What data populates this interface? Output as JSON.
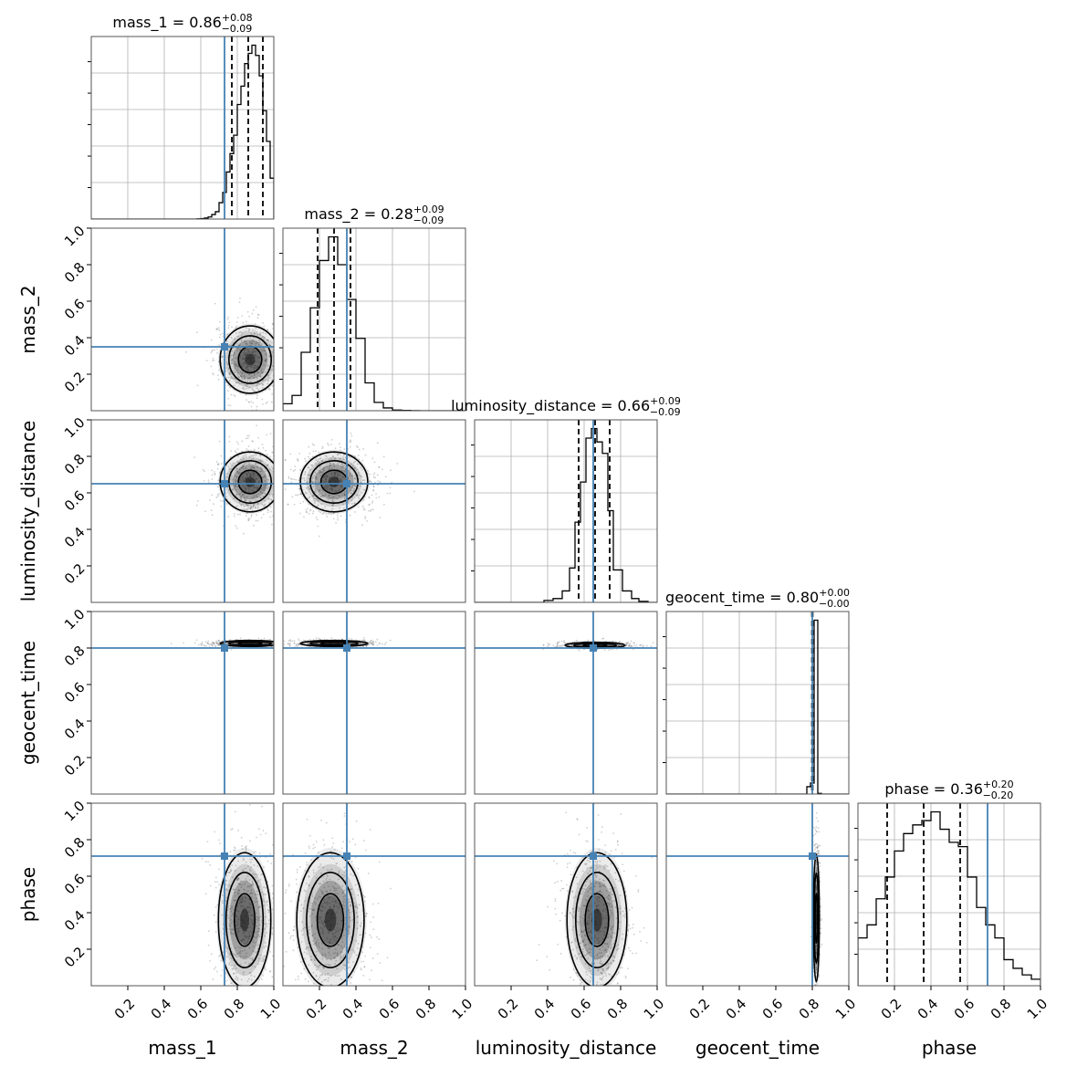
{
  "chart_data": {
    "type": "corner",
    "parameters": [
      "mass_1",
      "mass_2",
      "luminosity_distance",
      "geocent_time",
      "phase"
    ],
    "range": [
      0,
      1
    ],
    "tick_labels": [
      "0.2",
      "0.4",
      "0.6",
      "0.8",
      "1.0"
    ],
    "grid": true,
    "colors": {
      "truth": "#4682b4",
      "hist": "#000000",
      "grid": "#b0b0b0",
      "density": "#000000"
    },
    "truths": {
      "mass_1": 0.73,
      "mass_2": 0.35,
      "luminosity_distance": 0.65,
      "geocent_time": 0.8,
      "phase": 0.71
    },
    "titles": [
      {
        "name": "mass_1",
        "median": "0.86",
        "plus": "+0.08",
        "minus": "−0.09",
        "text": "mass_1 = 0.86",
        "sup": "+0.08",
        "sub": "−0.09"
      },
      {
        "name": "mass_2",
        "median": "0.28",
        "plus": "+0.09",
        "minus": "−0.09",
        "text": "mass_2 = 0.28",
        "sup": "+0.09",
        "sub": "−0.09"
      },
      {
        "name": "luminosity_distance",
        "median": "0.66",
        "plus": "+0.09",
        "minus": "−0.09",
        "text": "luminosity_distance = 0.66",
        "sup": "+0.09",
        "sub": "−0.09"
      },
      {
        "name": "geocent_time",
        "median": "0.80",
        "plus": "+0.00",
        "minus": "−0.00",
        "text": "geocent_time = 0.80",
        "sup": "+0.00",
        "sub": "−0.00"
      },
      {
        "name": "phase",
        "median": "0.36",
        "plus": "+0.20",
        "minus": "−0.20",
        "text": "phase = 0.36",
        "sup": "+0.20",
        "sub": "−0.20"
      }
    ],
    "marginals": [
      {
        "param": "mass_1",
        "quantiles": [
          0.77,
          0.86,
          0.94
        ],
        "bins": [
          0.58,
          0.6,
          0.62,
          0.64,
          0.66,
          0.68,
          0.7,
          0.72,
          0.74,
          0.76,
          0.78,
          0.8,
          0.82,
          0.84,
          0.86,
          0.88,
          0.9,
          0.92,
          0.94,
          0.96,
          0.98,
          1.0
        ],
        "counts": [
          1,
          2,
          5,
          10,
          22,
          36,
          80,
          130,
          230,
          320,
          410,
          560,
          650,
          760,
          810,
          850,
          800,
          700,
          530,
          380,
          200
        ]
      },
      {
        "param": "mass_2",
        "quantiles": [
          0.19,
          0.28,
          0.37
        ],
        "bins": [
          0.0,
          0.05,
          0.1,
          0.15,
          0.2,
          0.25,
          0.3,
          0.35,
          0.4,
          0.45,
          0.5,
          0.55,
          0.6,
          0.65,
          0.7,
          0.75,
          0.8
        ],
        "counts": [
          50,
          110,
          420,
          740,
          1080,
          1250,
          1050,
          800,
          520,
          200,
          60,
          20,
          5,
          2,
          1,
          0
        ]
      },
      {
        "param": "luminosity_distance",
        "quantiles": [
          0.57,
          0.66,
          0.74
        ],
        "bins": [
          0.38,
          0.43,
          0.48,
          0.52,
          0.55,
          0.58,
          0.61,
          0.64,
          0.67,
          0.7,
          0.73,
          0.76,
          0.81,
          0.86,
          0.9,
          0.95
        ],
        "counts": [
          10,
          20,
          60,
          180,
          420,
          630,
          860,
          910,
          840,
          780,
          480,
          170,
          60,
          20,
          5
        ]
      },
      {
        "param": "geocent_time",
        "quantiles": [
          0.798,
          0.8,
          0.802
        ],
        "bins": [
          0.77,
          0.79,
          0.81,
          0.83,
          0.85
        ],
        "counts": [
          60,
          90,
          1420,
          5
        ]
      },
      {
        "param": "phase",
        "quantiles": [
          0.16,
          0.36,
          0.56
        ],
        "bins": [
          0.0,
          0.05,
          0.1,
          0.15,
          0.2,
          0.25,
          0.3,
          0.35,
          0.4,
          0.45,
          0.5,
          0.55,
          0.6,
          0.65,
          0.7,
          0.75,
          0.8,
          0.85,
          0.9,
          0.95,
          1.0
        ],
        "counts": [
          110,
          140,
          200,
          250,
          310,
          350,
          370,
          380,
          400,
          360,
          330,
          320,
          250,
          180,
          140,
          110,
          60,
          40,
          25,
          15
        ]
      }
    ],
    "pairs": [
      {
        "x": "mass_1",
        "y": "mass_2",
        "center": [
          0.87,
          0.28
        ],
        "sigma": [
          0.08,
          0.09
        ]
      },
      {
        "x": "mass_1",
        "y": "luminosity_distance",
        "center": [
          0.87,
          0.66
        ],
        "sigma": [
          0.08,
          0.08
        ]
      },
      {
        "x": "mass_2",
        "y": "luminosity_distance",
        "center": [
          0.28,
          0.66
        ],
        "sigma": [
          0.09,
          0.08
        ]
      },
      {
        "x": "mass_1",
        "y": "geocent_time",
        "center": [
          0.87,
          0.825
        ],
        "sigma": [
          0.08,
          0.008
        ]
      },
      {
        "x": "mass_2",
        "y": "geocent_time",
        "center": [
          0.28,
          0.825
        ],
        "sigma": [
          0.09,
          0.008
        ]
      },
      {
        "x": "luminosity_distance",
        "y": "geocent_time",
        "center": [
          0.66,
          0.815
        ],
        "sigma": [
          0.08,
          0.008
        ]
      },
      {
        "x": "mass_1",
        "y": "phase",
        "center": [
          0.84,
          0.36
        ],
        "sigma": [
          0.07,
          0.18
        ]
      },
      {
        "x": "mass_2",
        "y": "phase",
        "center": [
          0.26,
          0.36
        ],
        "sigma": [
          0.09,
          0.18
        ]
      },
      {
        "x": "luminosity_distance",
        "y": "phase",
        "center": [
          0.67,
          0.36
        ],
        "sigma": [
          0.08,
          0.18
        ]
      },
      {
        "x": "geocent_time",
        "y": "phase",
        "center": [
          0.822,
          0.37
        ],
        "sigma": [
          0.008,
          0.17
        ]
      }
    ]
  }
}
